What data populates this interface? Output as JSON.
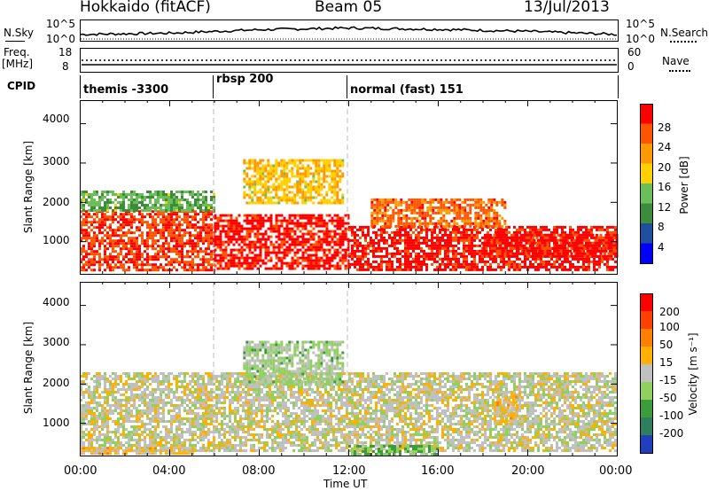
{
  "header": {
    "station": "Hokkaido (fitACF)",
    "beam": "Beam 05",
    "date": "13/Jul/2013"
  },
  "nsky_panel": {
    "left_label": "N.Sky",
    "left_ticks": [
      "10^5",
      "10^0"
    ],
    "right_ticks": [
      "10^5",
      "10^0"
    ],
    "right_label": "N.Search"
  },
  "freq_panel": {
    "left_label_line1": "Freq.",
    "left_label_line2": "[MHz]",
    "left_ticks": [
      "18",
      "8"
    ],
    "right_ticks": [
      "60",
      "0"
    ],
    "right_label": "Nave"
  },
  "cpid_panel": {
    "label": "CPID",
    "modes": [
      {
        "name": "themis -3300",
        "start": "00:00"
      },
      {
        "name": "rbsp 200",
        "start": "06:00"
      },
      {
        "name": "normal (fast) 151",
        "start": "12:00"
      }
    ]
  },
  "power_panel": {
    "ylabel": "Slant Range [km]",
    "yticks": [
      "4000",
      "3000",
      "2000",
      "1000"
    ],
    "colorbar_label": "Power [dB]",
    "colorbar_ticks": [
      "28",
      "24",
      "20",
      "16",
      "12",
      "8",
      "4"
    ],
    "colors": [
      "#0000ff",
      "#1f4f9f",
      "#3c8c3c",
      "#6bbf59",
      "#ffd000",
      "#ff9900",
      "#ff5500",
      "#ff0000"
    ]
  },
  "velocity_panel": {
    "ylabel": "Slant Range [km]",
    "yticks": [
      "4000",
      "3000",
      "2000",
      "1000"
    ],
    "colorbar_label": "Velocity [m s⁻¹]",
    "colorbar_ticks": [
      "200",
      "100",
      "50",
      "15",
      "-15",
      "-50",
      "-100",
      "-200"
    ],
    "colors": [
      "#1f3fbf",
      "#2f7f5f",
      "#3c9c3c",
      "#8fd05f",
      "#c0c0c0",
      "#ffb000",
      "#ff8000",
      "#ff4000",
      "#ff0000"
    ]
  },
  "xaxis": {
    "label": "Time UT",
    "ticks": [
      "00:00",
      "04:00",
      "08:00",
      "12:00",
      "16:00",
      "20:00",
      "00:00"
    ]
  },
  "chart_data": [
    {
      "type": "line",
      "title": "N.Sky / N.Search",
      "x": [
        "00:00",
        "04:00",
        "08:00",
        "12:00",
        "16:00",
        "20:00",
        "24:00"
      ],
      "series": [
        {
          "name": "N.Sky",
          "values": [
            1.5,
            1.8,
            2.6,
            3.0,
            2.7,
            2.2,
            1.5
          ]
        }
      ],
      "ylim": [
        0,
        5
      ]
    },
    {
      "type": "line",
      "title": "Freq. / Nave",
      "x": [
        "00:00",
        "04:00",
        "08:00",
        "12:00",
        "16:00",
        "20:00",
        "24:00"
      ],
      "series": [
        {
          "name": "Freq.",
          "values": [
            10,
            10,
            10,
            10,
            10,
            10,
            10
          ]
        },
        {
          "name": "Nave",
          "values": [
            30,
            30,
            30,
            30,
            30,
            30,
            30
          ]
        }
      ],
      "ylim": [
        8,
        18
      ]
    },
    {
      "type": "heatmap",
      "title": "Power [dB]",
      "xlabel": "Time UT",
      "ylabel": "Slant Range [km]",
      "xlim": [
        0,
        24
      ],
      "ylim": [
        180,
        4600
      ],
      "zlim": [
        0,
        30
      ],
      "regions": [
        {
          "t0": 0.0,
          "t1": 6.0,
          "r0": 300,
          "r1": 1800,
          "power": 26
        },
        {
          "t0": 0.0,
          "t1": 6.0,
          "r0": 1800,
          "r1": 2300,
          "power": 12
        },
        {
          "t0": 6.0,
          "t1": 12.0,
          "r0": 300,
          "r1": 1700,
          "power": 28
        },
        {
          "t0": 7.3,
          "t1": 11.8,
          "r0": 2000,
          "r1": 3100,
          "power": 18
        },
        {
          "t0": 12.0,
          "t1": 24.0,
          "r0": 300,
          "r1": 1400,
          "power": 28
        },
        {
          "t0": 13.0,
          "t1": 19.0,
          "r0": 1400,
          "r1": 2100,
          "power": 24
        },
        {
          "t0": 18.0,
          "t1": 24.0,
          "r0": 600,
          "r1": 1200,
          "power": 28
        }
      ]
    },
    {
      "type": "heatmap",
      "title": "Velocity [m s⁻¹]",
      "xlabel": "Time UT",
      "ylabel": "Slant Range [km]",
      "xlim": [
        0,
        24
      ],
      "ylim": [
        180,
        4600
      ],
      "zlim": [
        -200,
        200
      ],
      "regions": [
        {
          "t0": 0.0,
          "t1": 24.0,
          "r0": 300,
          "r1": 2300,
          "velocity": 0
        },
        {
          "t0": 7.3,
          "t1": 11.8,
          "r0": 2000,
          "r1": 3100,
          "velocity": -30
        },
        {
          "t0": 0.0,
          "t1": 5.0,
          "r0": 200,
          "r1": 400,
          "velocity": 30
        },
        {
          "t0": 12.0,
          "t1": 16.0,
          "r0": 200,
          "r1": 450,
          "velocity": -60
        },
        {
          "t0": 18.5,
          "t1": 19.5,
          "r0": 1000,
          "r1": 1700,
          "velocity": 30
        }
      ]
    }
  ]
}
